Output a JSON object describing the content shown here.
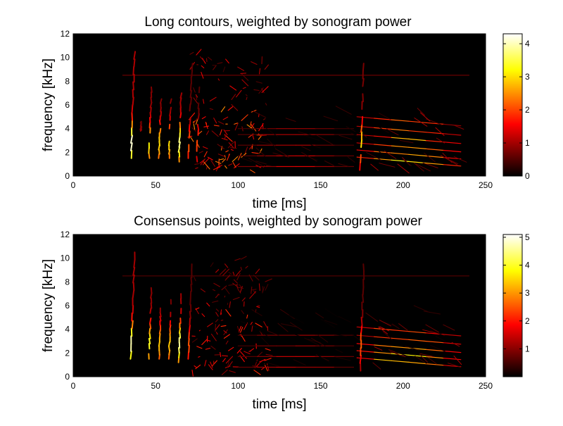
{
  "colors": {
    "background": "#000000",
    "colormap": "hot"
  },
  "chart_data": [
    {
      "type": "heatmap",
      "title": "Long contours, weighted by sonogram power",
      "xlabel": "time [ms]",
      "ylabel": "frequency [kHz]",
      "xlim": [
        0,
        250
      ],
      "ylim": [
        0,
        12
      ],
      "xticks": [
        0,
        50,
        100,
        150,
        200,
        250
      ],
      "yticks": [
        0,
        2,
        4,
        6,
        8,
        10,
        12
      ],
      "colorbar": {
        "range": [
          0,
          4.3
        ],
        "ticks": [
          0,
          1,
          2,
          3,
          4
        ],
        "location": "right"
      },
      "colormap": "hot",
      "features": {
        "vertical_strokes": [
          {
            "t": 35,
            "f0": 1.5,
            "f1": 10.5,
            "peak": 4.2
          },
          {
            "t": 41,
            "f0": 3.8,
            "f1": 4.6,
            "peak": 1.2
          },
          {
            "t": 46,
            "f0": 1.5,
            "f1": 7.5,
            "peak": 3.2
          },
          {
            "t": 52,
            "f0": 1.5,
            "f1": 6.5,
            "peak": 3.0
          },
          {
            "t": 58,
            "f0": 1.5,
            "f1": 6.5,
            "peak": 3.0
          },
          {
            "t": 64,
            "f0": 1.2,
            "f1": 7.0,
            "peak": 3.8
          },
          {
            "t": 70,
            "f0": 1.5,
            "f1": 9.5,
            "peak": 2.2
          },
          {
            "t": 75,
            "f0": 1.2,
            "f1": 7.5,
            "peak": 2.0
          },
          {
            "t": 174,
            "f0": 0.5,
            "f1": 9.5,
            "peak": 3.0
          }
        ],
        "harmonic_stacks": [
          {
            "t0": 100,
            "t1": 170,
            "f": [
              0.8,
              1.7,
              2.6,
              3.5,
              4.0
            ],
            "peak": 1.5
          },
          {
            "t0": 172,
            "t1": 235,
            "f": [
              1.6,
              2.2,
              2.8,
              3.5,
              4.2,
              5.0
            ],
            "peak": 3.8
          }
        ],
        "tangle_region": {
          "t0": 72,
          "t1": 118,
          "f0": 0.5,
          "f1": 10.5,
          "peak": 2.5
        },
        "constant_line": {
          "f": 8.5,
          "t0": 30,
          "t1": 240,
          "peak": 0.8
        }
      }
    },
    {
      "type": "heatmap",
      "title": "Consensus points, weighted by sonogram power",
      "xlabel": "time [ms]",
      "ylabel": "frequency [kHz]",
      "xlim": [
        0,
        250
      ],
      "ylim": [
        0,
        12
      ],
      "xticks": [
        0,
        50,
        100,
        150,
        200,
        250
      ],
      "yticks": [
        0,
        2,
        4,
        6,
        8,
        10,
        12
      ],
      "colorbar": {
        "range": [
          0,
          5.1
        ],
        "ticks": [
          1,
          2,
          3,
          4,
          5
        ],
        "location": "right"
      },
      "colormap": "hot",
      "features": {
        "vertical_strokes": [
          {
            "t": 35,
            "f0": 1.5,
            "f1": 10.5,
            "peak": 4.8
          },
          {
            "t": 46,
            "f0": 1.5,
            "f1": 7.5,
            "peak": 4.0
          },
          {
            "t": 52,
            "f0": 1.5,
            "f1": 6.5,
            "peak": 3.4
          },
          {
            "t": 58,
            "f0": 1.5,
            "f1": 6.5,
            "peak": 3.4
          },
          {
            "t": 64,
            "f0": 1.2,
            "f1": 7.0,
            "peak": 4.6
          },
          {
            "t": 70,
            "f0": 1.5,
            "f1": 9.5,
            "peak": 2.5
          },
          {
            "t": 174,
            "f0": 0.5,
            "f1": 9.5,
            "peak": 2.6
          }
        ],
        "harmonic_stacks": [
          {
            "t0": 100,
            "t1": 170,
            "f": [
              0.8,
              1.7,
              2.6,
              3.5
            ],
            "peak": 1.6
          },
          {
            "t0": 172,
            "t1": 235,
            "f": [
              1.6,
              2.2,
              2.8,
              3.5,
              4.2
            ],
            "peak": 4.4
          }
        ],
        "tangle_region": {
          "t0": 72,
          "t1": 118,
          "f0": 0.5,
          "f1": 10.5,
          "peak": 2.2
        },
        "constant_line": {
          "f": 8.5,
          "t0": 30,
          "t1": 240,
          "peak": 0.7
        }
      }
    }
  ]
}
